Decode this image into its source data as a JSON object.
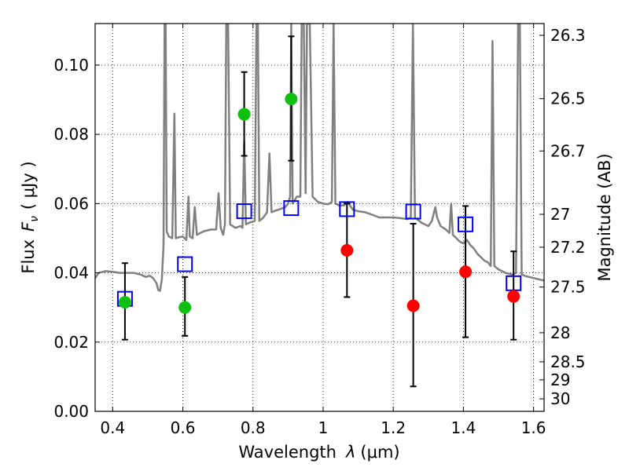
{
  "chart_data": {
    "type": "scatter",
    "title": "",
    "xlabel_text": "Wavelength",
    "xlabel_symbol": "λ",
    "xlabel_unit": "(μm)",
    "ylabel_text": "Flux",
    "ylabel_symbol": "F",
    "ylabel_sub": "ν",
    "ylabel_unit": "( μJy )",
    "y2label": "Magnitude (AB)",
    "xlim": [
      0.35,
      1.63
    ],
    "ylim": [
      0.0,
      0.112
    ],
    "xticks": [
      0.4,
      0.6,
      0.8,
      1.0,
      1.2,
      1.4,
      1.6
    ],
    "xtick_labels": [
      "0.4",
      "0.6",
      "0.8",
      "1",
      "1.2",
      "1.4",
      "1.6"
    ],
    "yticks": [
      0.0,
      0.02,
      0.04,
      0.06,
      0.08,
      0.1
    ],
    "ytick_labels": [
      "0.00",
      "0.02",
      "0.04",
      "0.06",
      "0.08",
      "0.10"
    ],
    "y2_ticks": [
      {
        "label": "26.3",
        "flux": 0.1086
      },
      {
        "label": "26.5",
        "flux": 0.0903
      },
      {
        "label": "26.7",
        "flux": 0.0752
      },
      {
        "label": "27",
        "flux": 0.0569
      },
      {
        "label": "27.2",
        "flux": 0.0474
      },
      {
        "label": "27.5",
        "flux": 0.0359
      },
      {
        "label": "28",
        "flux": 0.0227
      },
      {
        "label": "28.5",
        "flux": 0.0143
      },
      {
        "label": "29",
        "flux": 0.0091
      },
      {
        "label": "30",
        "flux": 0.0036
      }
    ],
    "grid": true,
    "colors": {
      "spectrum": "#808080",
      "detected": "#10c010",
      "undetected": "#ff0000",
      "model": "#0000ff",
      "errorbar": "#000000"
    },
    "series": [
      {
        "kind": "model_flux",
        "marker": "open-square",
        "points": [
          {
            "x": 0.435,
            "y": 0.0325
          },
          {
            "x": 0.606,
            "y": 0.0425
          },
          {
            "x": 0.775,
            "y": 0.0578
          },
          {
            "x": 0.909,
            "y": 0.0587
          },
          {
            "x": 1.068,
            "y": 0.0584
          },
          {
            "x": 1.257,
            "y": 0.0577
          },
          {
            "x": 1.406,
            "y": 0.054
          },
          {
            "x": 1.543,
            "y": 0.037
          }
        ]
      },
      {
        "kind": "observed_detected",
        "marker": "filled-circle",
        "points": [
          {
            "x": 0.435,
            "y": 0.0315,
            "err_low": 0.0207,
            "err_high": 0.0428
          },
          {
            "x": 0.606,
            "y": 0.03,
            "err_low": 0.0218,
            "err_high": 0.0388
          },
          {
            "x": 0.775,
            "y": 0.0858,
            "err_low": 0.0738,
            "err_high": 0.098
          },
          {
            "x": 0.909,
            "y": 0.0902,
            "err_low": 0.0724,
            "err_high": 0.1083
          }
        ]
      },
      {
        "kind": "observed_undetected",
        "marker": "filled-circle",
        "points": [
          {
            "x": 1.068,
            "y": 0.0465,
            "err_low": 0.033,
            "err_high": 0.06
          },
          {
            "x": 1.257,
            "y": 0.0305,
            "err_low": 0.0072,
            "err_high": 0.0542
          },
          {
            "x": 1.406,
            "y": 0.0403,
            "err_low": 0.0214,
            "err_high": 0.0593
          },
          {
            "x": 1.543,
            "y": 0.0332,
            "err_low": 0.0207,
            "err_high": 0.0462
          }
        ]
      }
    ],
    "spectrum": [
      [
        0.35,
        0.0385
      ],
      [
        0.36,
        0.04
      ],
      [
        0.38,
        0.0405
      ],
      [
        0.4,
        0.0403
      ],
      [
        0.42,
        0.04
      ],
      [
        0.44,
        0.04
      ],
      [
        0.46,
        0.04
      ],
      [
        0.48,
        0.0395
      ],
      [
        0.495,
        0.0388
      ],
      [
        0.505,
        0.0392
      ],
      [
        0.515,
        0.0385
      ],
      [
        0.525,
        0.037
      ],
      [
        0.53,
        0.035
      ],
      [
        0.535,
        0.0348
      ],
      [
        0.54,
        0.038
      ],
      [
        0.545,
        0.048
      ],
      [
        0.548,
        0.112
      ],
      [
        0.551,
        0.112
      ],
      [
        0.554,
        0.052
      ],
      [
        0.56,
        0.0505
      ],
      [
        0.57,
        0.05
      ],
      [
        0.576,
        0.086
      ],
      [
        0.58,
        0.05
      ],
      [
        0.59,
        0.0503
      ],
      [
        0.6,
        0.0505
      ],
      [
        0.61,
        0.0495
      ],
      [
        0.616,
        0.062
      ],
      [
        0.62,
        0.0505
      ],
      [
        0.628,
        0.05
      ],
      [
        0.634,
        0.059
      ],
      [
        0.64,
        0.051
      ],
      [
        0.66,
        0.052
      ],
      [
        0.68,
        0.0525
      ],
      [
        0.695,
        0.0525
      ],
      [
        0.702,
        0.063
      ],
      [
        0.708,
        0.053
      ],
      [
        0.715,
        0.051
      ],
      [
        0.72,
        0.054
      ],
      [
        0.724,
        0.112
      ],
      [
        0.729,
        0.112
      ],
      [
        0.735,
        0.054
      ],
      [
        0.75,
        0.053
      ],
      [
        0.765,
        0.0535
      ],
      [
        0.77,
        0.053
      ],
      [
        0.775,
        0.078
      ],
      [
        0.78,
        0.054
      ],
      [
        0.79,
        0.0545
      ],
      [
        0.8,
        0.0548
      ],
      [
        0.805,
        0.055
      ],
      [
        0.81,
        0.112
      ],
      [
        0.814,
        0.112
      ],
      [
        0.818,
        0.055
      ],
      [
        0.83,
        0.056
      ],
      [
        0.84,
        0.0575
      ],
      [
        0.847,
        0.0745
      ],
      [
        0.853,
        0.0575
      ],
      [
        0.865,
        0.058
      ],
      [
        0.88,
        0.0585
      ],
      [
        0.892,
        0.059
      ],
      [
        0.9,
        0.06
      ],
      [
        0.906,
        0.062
      ],
      [
        0.909,
        0.112
      ],
      [
        0.913,
        0.06
      ],
      [
        0.925,
        0.062
      ],
      [
        0.935,
        0.062
      ],
      [
        0.939,
        0.112
      ],
      [
        0.945,
        0.112
      ],
      [
        0.95,
        0.063
      ],
      [
        0.954,
        0.112
      ],
      [
        0.962,
        0.112
      ],
      [
        0.97,
        0.062
      ],
      [
        0.985,
        0.0605
      ],
      [
        1.0,
        0.06
      ],
      [
        1.015,
        0.0598
      ],
      [
        1.025,
        0.0605
      ],
      [
        1.03,
        0.112
      ],
      [
        1.035,
        0.06
      ],
      [
        1.045,
        0.0595
      ],
      [
        1.06,
        0.0595
      ],
      [
        1.07,
        0.0605
      ],
      [
        1.085,
        0.0582
      ],
      [
        1.1,
        0.0578
      ],
      [
        1.12,
        0.0575
      ],
      [
        1.14,
        0.0568
      ],
      [
        1.16,
        0.056
      ],
      [
        1.18,
        0.056
      ],
      [
        1.2,
        0.056
      ],
      [
        1.22,
        0.0558
      ],
      [
        1.24,
        0.0555
      ],
      [
        1.25,
        0.056
      ],
      [
        1.256,
        0.112
      ],
      [
        1.262,
        0.056
      ],
      [
        1.28,
        0.0545
      ],
      [
        1.3,
        0.0535
      ],
      [
        1.31,
        0.055
      ],
      [
        1.32,
        0.059
      ],
      [
        1.325,
        0.056
      ],
      [
        1.335,
        0.0535
      ],
      [
        1.35,
        0.0525
      ],
      [
        1.36,
        0.0515
      ],
      [
        1.365,
        0.06
      ],
      [
        1.37,
        0.051
      ],
      [
        1.38,
        0.05
      ],
      [
        1.39,
        0.049
      ],
      [
        1.4,
        0.0485
      ],
      [
        1.41,
        0.0495
      ],
      [
        1.42,
        0.048
      ],
      [
        1.43,
        0.047
      ],
      [
        1.44,
        0.0455
      ],
      [
        1.45,
        0.0445
      ],
      [
        1.46,
        0.0435
      ],
      [
        1.47,
        0.043
      ],
      [
        1.478,
        0.042
      ],
      [
        1.483,
        0.107
      ],
      [
        1.488,
        0.042
      ],
      [
        1.5,
        0.041
      ],
      [
        1.52,
        0.04
      ],
      [
        1.54,
        0.0395
      ],
      [
        1.55,
        0.04
      ],
      [
        1.556,
        0.112
      ],
      [
        1.561,
        0.112
      ],
      [
        1.566,
        0.0395
      ],
      [
        1.58,
        0.039
      ],
      [
        1.6,
        0.0385
      ],
      [
        1.62,
        0.038
      ],
      [
        1.63,
        0.0378
      ]
    ]
  }
}
